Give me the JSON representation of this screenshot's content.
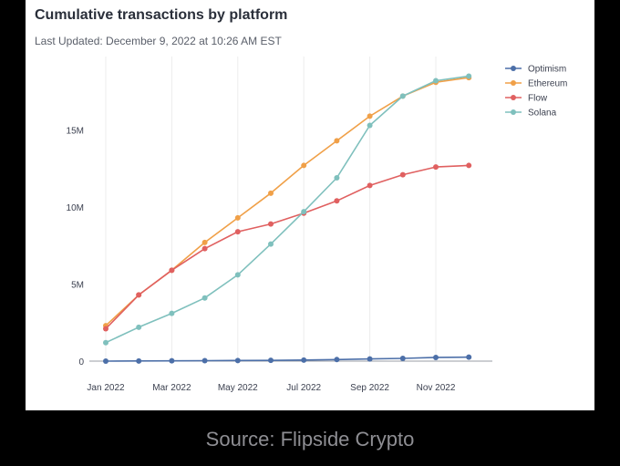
{
  "chart_data": {
    "type": "line",
    "title": "Cumulative transactions by platform",
    "subtitle": "Last Updated: December 9, 2022 at 10:26 AM EST",
    "x": [
      "2022-01",
      "2022-02",
      "2022-03",
      "2022-04",
      "2022-05",
      "2022-06",
      "2022-07",
      "2022-08",
      "2022-09",
      "2022-10",
      "2022-11",
      "2022-12"
    ],
    "xticks": [
      {
        "index": 0,
        "label": "Jan 2022"
      },
      {
        "index": 2,
        "label": "Mar 2022"
      },
      {
        "index": 4,
        "label": "May 2022"
      },
      {
        "index": 6,
        "label": "Jul 2022"
      },
      {
        "index": 8,
        "label": "Sep 2022"
      },
      {
        "index": 10,
        "label": "Nov 2022"
      }
    ],
    "yticks": [
      {
        "value": 0,
        "label": "0"
      },
      {
        "value": 5000000,
        "label": "5M"
      },
      {
        "value": 10000000,
        "label": "10M"
      },
      {
        "value": 15000000,
        "label": "15M"
      }
    ],
    "ylim": [
      0,
      19000000
    ],
    "xlabel": "",
    "ylabel": "",
    "grid": "vertical",
    "legend_position": "top-right",
    "series": [
      {
        "name": "Optimism",
        "color": "#4c6fa8",
        "values": [
          0,
          10000,
          20000,
          30000,
          40000,
          50000,
          70000,
          100000,
          140000,
          180000,
          240000,
          260000
        ]
      },
      {
        "name": "Ethereum",
        "color": "#f0a048",
        "values": [
          2300000,
          4300000,
          5900000,
          7700000,
          9300000,
          10900000,
          12700000,
          14300000,
          15900000,
          17200000,
          18100000,
          18400000
        ]
      },
      {
        "name": "Flow",
        "color": "#e06060",
        "values": [
          2100000,
          4300000,
          5900000,
          7300000,
          8400000,
          8900000,
          9600000,
          10400000,
          11400000,
          12100000,
          12600000,
          12700000
        ]
      },
      {
        "name": "Solana",
        "color": "#7fc0bd",
        "values": [
          1200000,
          2200000,
          3100000,
          4100000,
          5600000,
          7600000,
          9700000,
          11900000,
          15300000,
          17200000,
          18200000,
          18500000
        ]
      }
    ]
  },
  "footer": {
    "source": "Source: Flipside Crypto"
  }
}
